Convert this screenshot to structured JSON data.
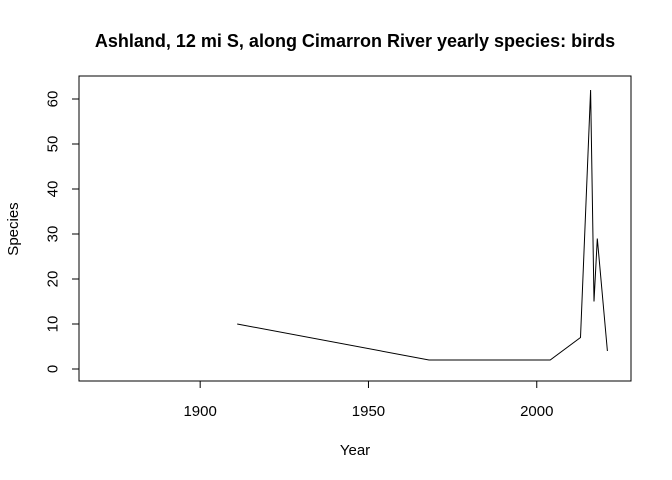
{
  "chart_data": {
    "type": "line",
    "title": "Ashland, 12 mi S, along Cimarron River yearly species: birds",
    "xlabel": "Year",
    "ylabel": "Species",
    "xlim": [
      1864,
      2028
    ],
    "ylim": [
      0,
      62
    ],
    "x_ticks": [
      1900,
      1950,
      2000
    ],
    "y_ticks": [
      0,
      10,
      20,
      30,
      40,
      50,
      60
    ],
    "grid": false,
    "series": [
      {
        "x": [
          1911,
          1968,
          2004,
          2013,
          2016,
          2017,
          2018,
          2021
        ],
        "values": [
          10,
          2,
          2,
          7,
          62,
          15,
          29,
          4
        ]
      }
    ]
  }
}
